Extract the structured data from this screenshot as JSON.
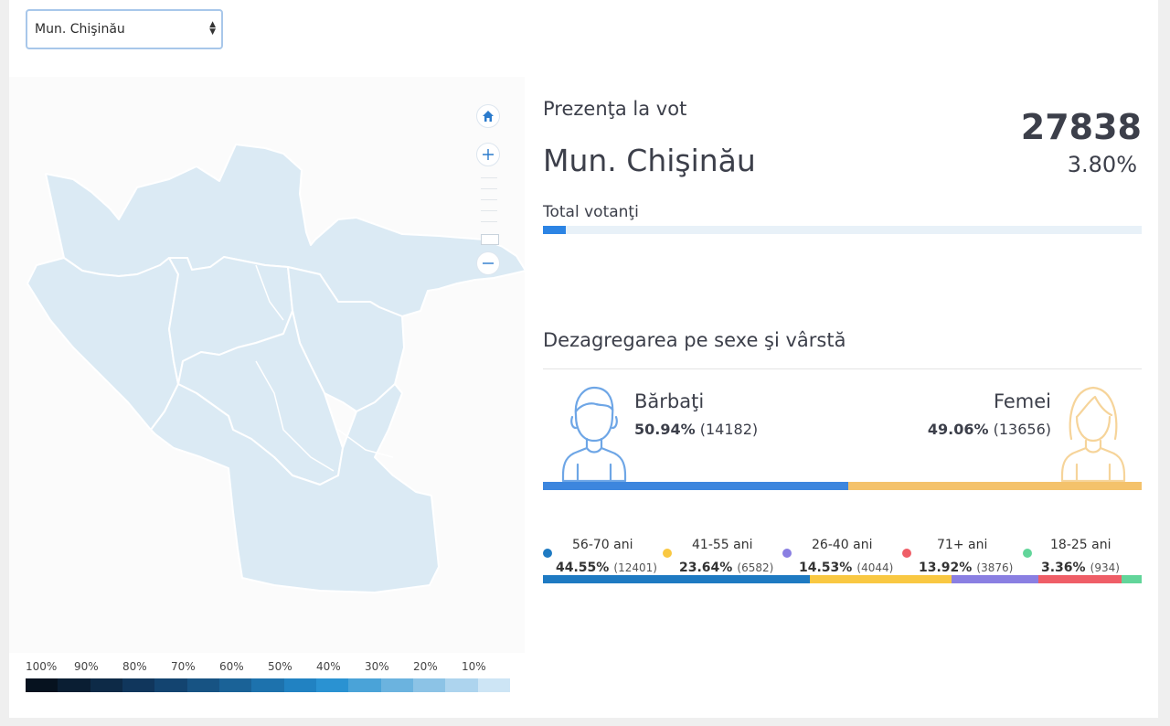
{
  "selector": {
    "value": "Mun. Chişinău"
  },
  "map": {
    "region_fill": "#dbeaf4",
    "region_stroke": "#ffffff",
    "home_icon": "home-icon",
    "zoom_in_icon": "plus-icon",
    "zoom_out_icon": "minus-icon"
  },
  "legend": {
    "labels": [
      "100%",
      "90%",
      "80%",
      "70%",
      "60%",
      "50%",
      "40%",
      "30%",
      "20%",
      "10%"
    ],
    "colors": [
      "#06121f",
      "#0a1e33",
      "#0d2a47",
      "#10365c",
      "#134470",
      "#175383",
      "#1a6297",
      "#1d72ad",
      "#2182c2",
      "#2a92d2",
      "#4aa3d8",
      "#6bb3df",
      "#8cc3e6",
      "#add4ee",
      "#cde5f5"
    ]
  },
  "presence": {
    "heading": "Prezenţa la vot",
    "city": "Mun. Chişinău",
    "total": "27838",
    "percent": "3.80%",
    "total_label": "Total votanţi",
    "progress": 0.038,
    "progress_color": "#2c84e4"
  },
  "breakdown": {
    "heading": "Dezagregarea pe sexe şi vârstă",
    "male": {
      "label": "Bărbaţi",
      "pct": "50.94%",
      "count": "(14182)",
      "share": 0.5094,
      "color": "#3d86de"
    },
    "female": {
      "label": "Femei",
      "pct": "49.06%",
      "count": "(13656)",
      "share": 0.4906,
      "color": "#f4c26b"
    }
  },
  "age_groups": [
    {
      "name": "56-70 ani",
      "pct": "44.55%",
      "count": "(12401)",
      "share": 0.4455,
      "color": "#1e7ac2"
    },
    {
      "name": "41-55 ani",
      "pct": "23.64%",
      "count": "(6582)",
      "share": 0.2364,
      "color": "#f9c842"
    },
    {
      "name": "26-40 ani",
      "pct": "14.53%",
      "count": "(4044)",
      "share": 0.1453,
      "color": "#8a7fe2"
    },
    {
      "name": "71+ ani",
      "pct": "13.92%",
      "count": "(3876)",
      "share": 0.1392,
      "color": "#ef5e67"
    },
    {
      "name": "18-25 ani",
      "pct": "3.36%",
      "count": "(934)",
      "share": 0.0336,
      "color": "#62d59a"
    }
  ]
}
